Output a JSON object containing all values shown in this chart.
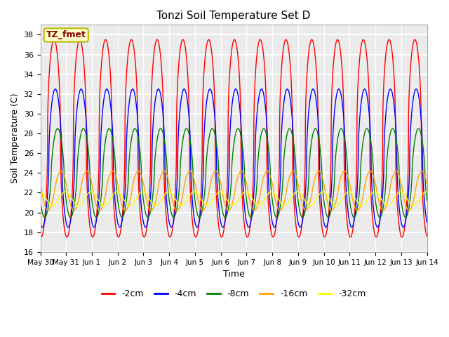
{
  "title": "Tonzi Soil Temperature Set D",
  "xlabel": "Time",
  "ylabel": "Soil Temperature (C)",
  "ylim": [
    16,
    39
  ],
  "yticks": [
    16,
    18,
    20,
    22,
    24,
    26,
    28,
    30,
    32,
    34,
    36,
    38
  ],
  "plot_bg_color": "#ebebeb",
  "grid_color": "white",
  "x_start": 0,
  "x_end": 15,
  "n_points": 5000,
  "x_tick_positions": [
    0,
    1,
    2,
    3,
    4,
    5,
    6,
    7,
    8,
    9,
    10,
    11,
    12,
    13,
    14,
    15
  ],
  "x_tick_labels": [
    "May 30",
    "May 31",
    "Jun 1",
    "Jun 2",
    "Jun 3",
    "Jun 4",
    "Jun 5",
    "Jun 6",
    "Jun 7",
    "Jun 8",
    "Jun 9",
    "Jun 10",
    "Jun 11",
    "Jun 12",
    "Jun 13",
    "Jun 14"
  ],
  "legend_label": "TZ_fmet",
  "legend_bg": "#ffffcc",
  "legend_border": "#bbbb00",
  "linewidth": 1.0,
  "series": [
    {
      "label": "-2cm",
      "color": "red",
      "amp": 10.0,
      "mean": 27.5,
      "phase": 0.28,
      "sharpness": 0.45
    },
    {
      "label": "-4cm",
      "color": "blue",
      "amp": 7.0,
      "mean": 25.5,
      "phase": 0.33,
      "sharpness": 0.55
    },
    {
      "label": "-8cm",
      "color": "green",
      "amp": 4.5,
      "mean": 24.0,
      "phase": 0.42,
      "sharpness": 0.65
    },
    {
      "label": "-16cm",
      "color": "orange",
      "amp": 2.0,
      "mean": 22.2,
      "phase": 0.55,
      "sharpness": 0.85
    },
    {
      "label": "-32cm",
      "color": "yellow",
      "amp": 0.7,
      "mean": 21.4,
      "phase": 0.72,
      "sharpness": 1.0
    }
  ]
}
